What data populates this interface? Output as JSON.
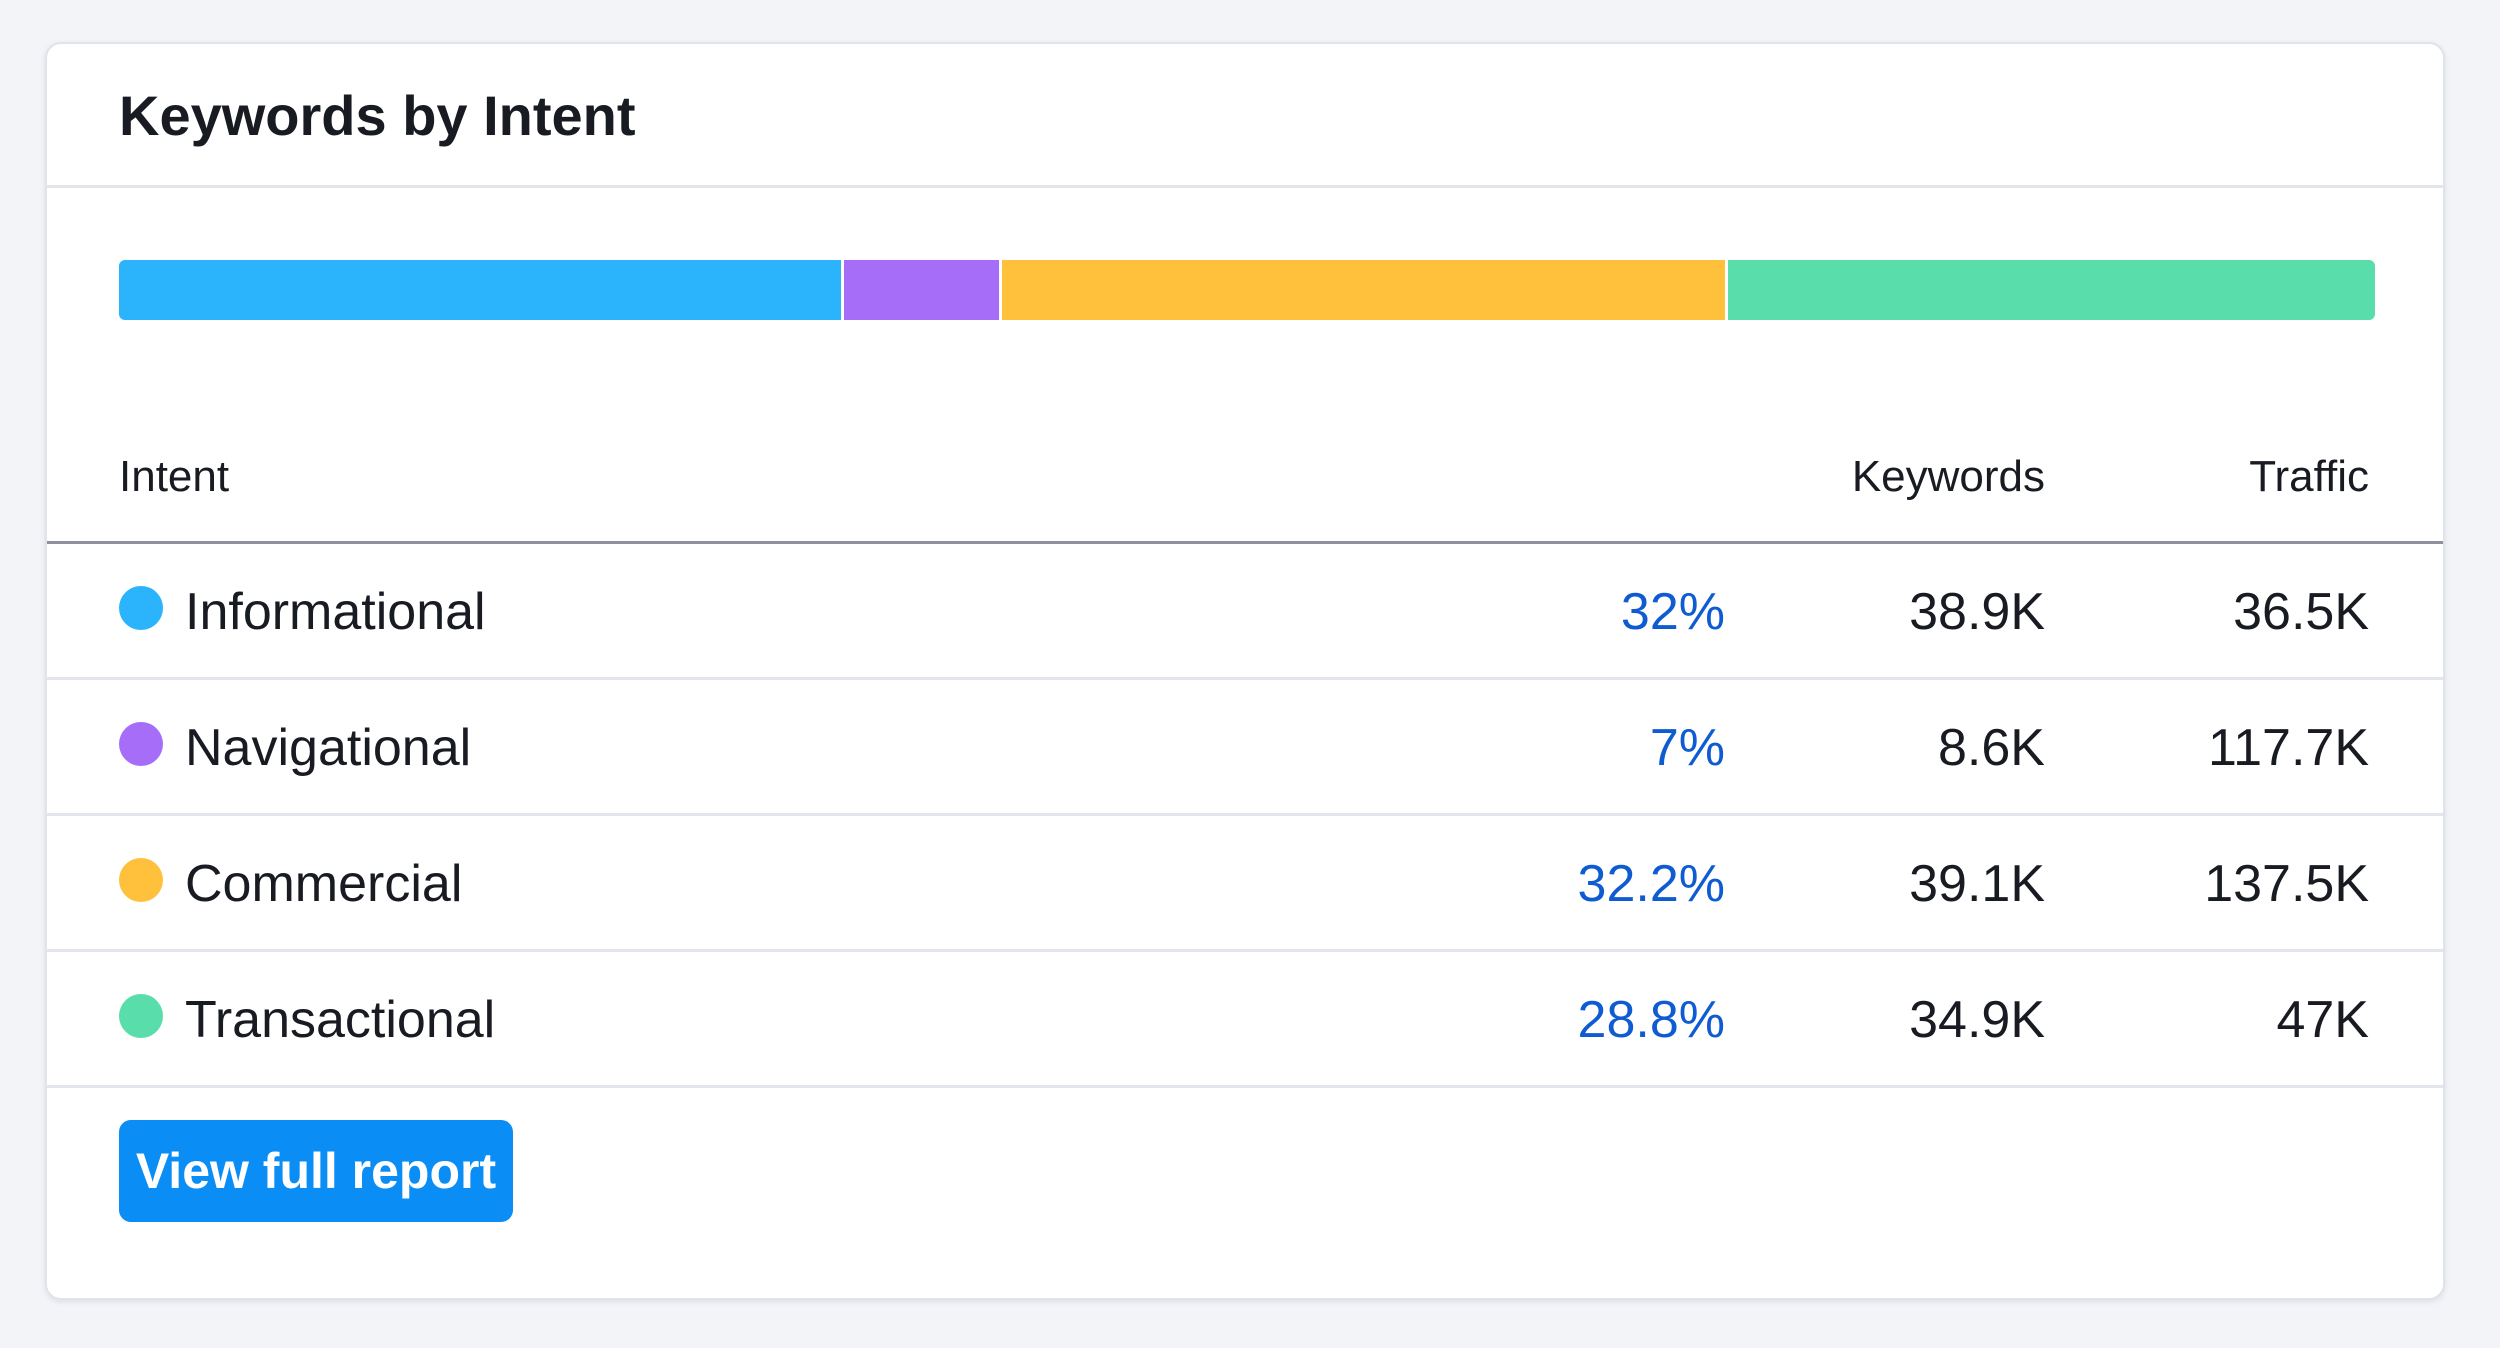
{
  "card": {
    "title": "Keywords by Intent"
  },
  "intent_distribution": {
    "segments": [
      {
        "name": "Informational",
        "share": 32,
        "color": "#2bb3fb"
      },
      {
        "name": "Navigational",
        "share": 7,
        "color": "#a66ef8"
      },
      {
        "name": "Commercial",
        "share": 32.2,
        "color": "#ffc13c"
      },
      {
        "name": "Transactional",
        "share": 28.8,
        "color": "#59deab"
      }
    ]
  },
  "table": {
    "headers": {
      "intent": "Intent",
      "keywords": "Keywords",
      "traffic": "Traffic"
    },
    "rows": [
      {
        "intent": "Informational",
        "share": "32%",
        "keywords": "38.9K",
        "traffic": "36.5K",
        "color": "#2bb3fb"
      },
      {
        "intent": "Navigational",
        "share": "7%",
        "keywords": "8.6K",
        "traffic": "117.7K",
        "color": "#a66ef8"
      },
      {
        "intent": "Commercial",
        "share": "32.2%",
        "keywords": "39.1K",
        "traffic": "137.5K",
        "color": "#ffc13c"
      },
      {
        "intent": "Transactional",
        "share": "28.8%",
        "keywords": "34.9K",
        "traffic": "47K",
        "color": "#59deab"
      }
    ]
  },
  "actions": {
    "view_full_report_label": "View full report"
  },
  "theme": {
    "accent": "#0a8df5",
    "link": "#0f5bd1"
  }
}
